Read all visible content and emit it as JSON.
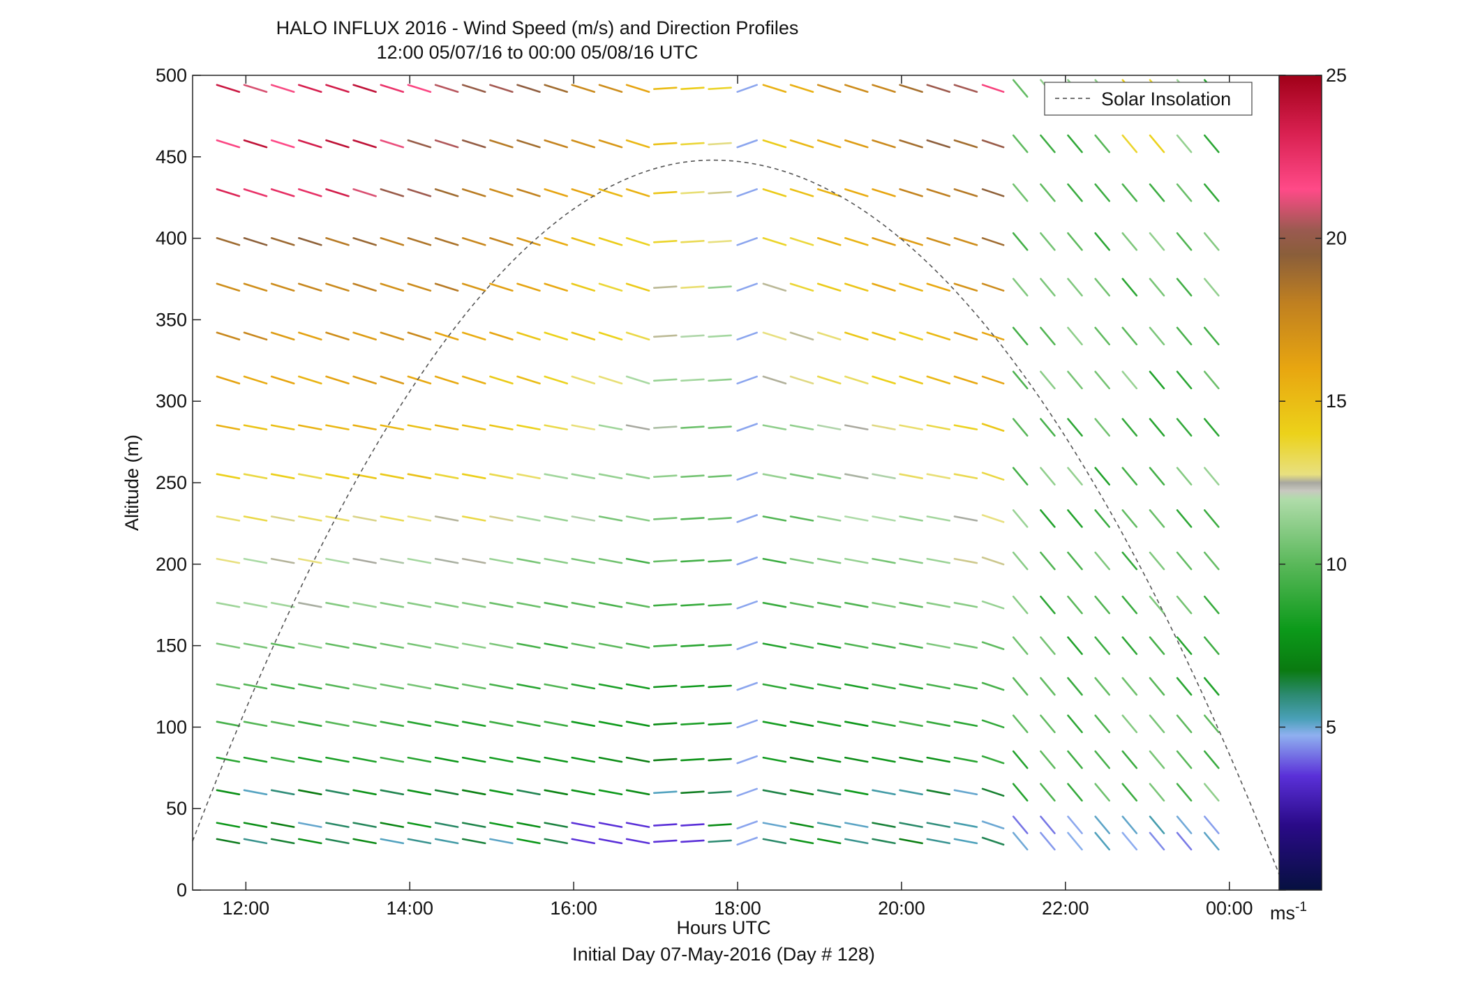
{
  "chart_data": {
    "type": "wind-barb",
    "title": "HALO INFLUX 2016 - Wind Speed (m/s) and Direction Profiles",
    "subtitle": "12:00 05/07/16 to 00:00 05/08/16  UTC",
    "xlabel": "Hours UTC",
    "xlabel2": "Initial Day 07-May-2016 (Day # 128)",
    "ylabel": "Altitude (m)",
    "xlim": [
      "11:21",
      "00:41"
    ],
    "ylim": [
      0,
      500
    ],
    "x_ticks": [
      "12:00",
      "14:00",
      "16:00",
      "18:00",
      "20:00",
      "22:00",
      "00:00"
    ],
    "y_ticks": [
      "0",
      "50",
      "100",
      "150",
      "200",
      "250",
      "300",
      "350",
      "400",
      "450",
      "500"
    ],
    "legend": {
      "entry": "Solar Insolation",
      "placement": "top-right"
    },
    "colorbar": {
      "ticks": [
        "5",
        "10",
        "15",
        "20",
        "25"
      ],
      "unit_base": "ms",
      "unit_exp": "-1",
      "range": [
        0,
        25
      ]
    },
    "altitudes": [
      30,
      40,
      60,
      80,
      102,
      125,
      150,
      175,
      202,
      228,
      254,
      284,
      313,
      340,
      370,
      398,
      428,
      458,
      492
    ],
    "times": [
      "11:47",
      "12:07",
      "12:27",
      "12:47",
      "13:07",
      "13:27",
      "13:47",
      "14:07",
      "14:27",
      "14:47",
      "15:07",
      "15:27",
      "15:47",
      "16:07",
      "16:27",
      "16:47",
      "17:07",
      "17:27",
      "17:47",
      "18:07",
      "18:27",
      "18:47",
      "19:07",
      "19:27",
      "19:47",
      "20:07",
      "20:27",
      "20:47",
      "21:07",
      "21:27",
      "21:47",
      "22:07",
      "22:27",
      "22:47",
      "23:07",
      "23:27",
      "23:47"
    ],
    "time_gap_start": "21:10",
    "solar_insolation": {
      "peak_time": "17:42",
      "peak_altitude": 448,
      "start": [
        "11:21",
        30
      ],
      "end": [
        "00:41",
        0
      ]
    }
  }
}
